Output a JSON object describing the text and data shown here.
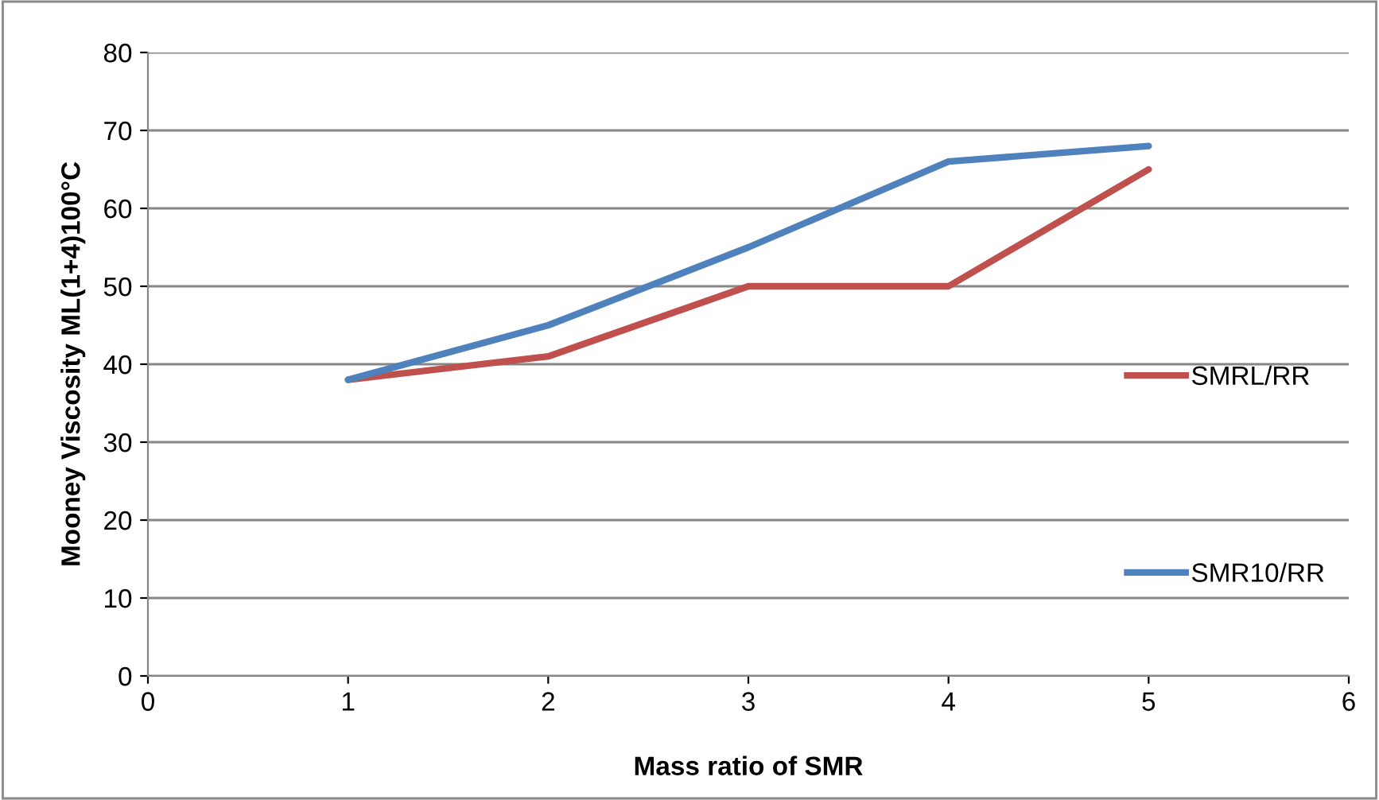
{
  "chart_data": {
    "type": "line",
    "xlabel": "Mass ratio of SMR",
    "ylabel": "Mooney Viscosity ML(1+4)100°C",
    "x": [
      1,
      2,
      3,
      4,
      5
    ],
    "series": [
      {
        "name": "SMRL/RR",
        "color": "#c0504d",
        "values": [
          38,
          41,
          50,
          50,
          65
        ]
      },
      {
        "name": "SMR10/RR",
        "color": "#4f81bd",
        "values": [
          38,
          45,
          55,
          66,
          68
        ]
      }
    ],
    "xlim": [
      0,
      6
    ],
    "xticks": [
      0,
      1,
      2,
      3,
      4,
      5,
      6
    ],
    "ylim": [
      0,
      80
    ],
    "yticks": [
      0,
      10,
      20,
      30,
      40,
      50,
      60,
      70,
      80
    ],
    "grid": "y",
    "legend": "right",
    "marker": "none",
    "line_style": "solid"
  }
}
